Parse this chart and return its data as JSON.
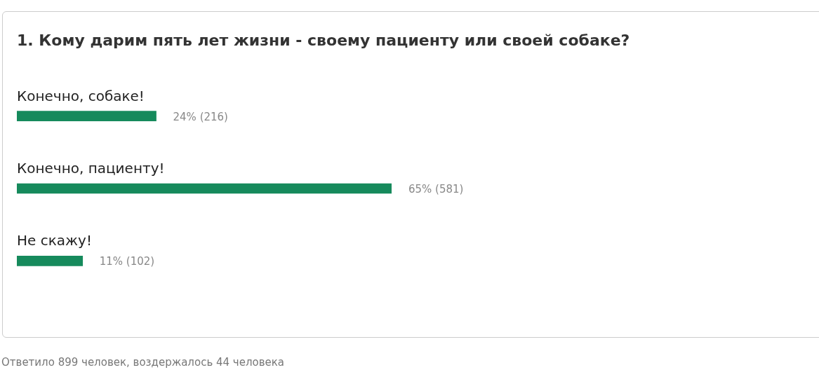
{
  "chart_data": {
    "type": "bar",
    "orientation": "horizontal",
    "title": "1. Кому дарим пять лет жизни - своему пациенту или своей собаке?",
    "categories": [
      "Конечно, собаке!",
      "Конечно, пациенту!",
      "Не скажу!"
    ],
    "values": [
      216,
      581,
      102
    ],
    "value_labels": [
      "24% (216)",
      "65% (581)",
      "11% (102)"
    ],
    "color": "#168a5c",
    "annotations": [
      "Ответило 899 человек, воздержалось 44 человека"
    ]
  }
}
